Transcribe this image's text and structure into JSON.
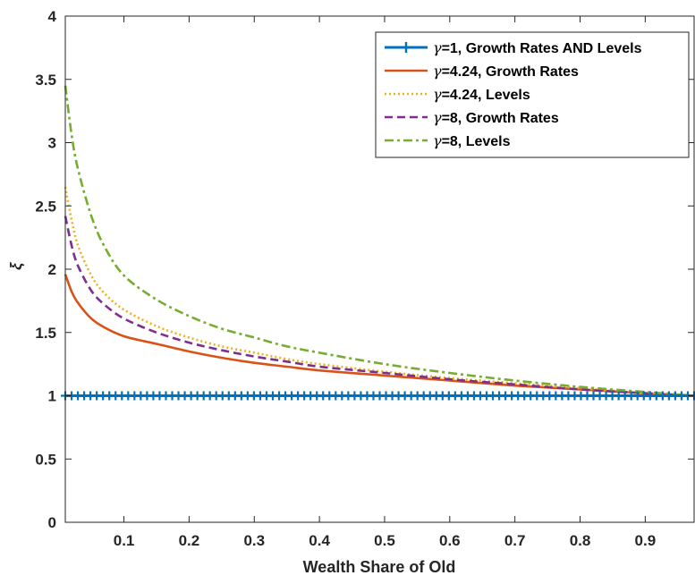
{
  "chart_data": {
    "type": "line",
    "xlabel": "Wealth Share of Old",
    "ylabel": "ξ",
    "xlim": [
      0.01,
      0.975
    ],
    "ylim": [
      0,
      4
    ],
    "xticks": [
      0.1,
      0.2,
      0.3,
      0.4,
      0.5,
      0.6,
      0.7,
      0.8,
      0.9
    ],
    "xtick_labels": [
      "0.1",
      "0.2",
      "0.3",
      "0.4",
      "0.5",
      "0.6",
      "0.7",
      "0.8",
      "0.9"
    ],
    "yticks": [
      0,
      0.5,
      1,
      1.5,
      2,
      2.5,
      3,
      3.5,
      4
    ],
    "ytick_labels": [
      "0",
      "0.5",
      "1",
      "1.5",
      "2",
      "2.5",
      "3",
      "3.5",
      "4"
    ],
    "legend_position": "top-right",
    "grid": false,
    "x": [
      0.01,
      0.02,
      0.03,
      0.05,
      0.07,
      0.1,
      0.15,
      0.2,
      0.25,
      0.3,
      0.35,
      0.4,
      0.5,
      0.6,
      0.7,
      0.8,
      0.9,
      0.975
    ],
    "series": [
      {
        "name": "γ=1, Growth Rates AND Levels",
        "greek": "γ",
        "text": "=1, Growth Rates AND Levels",
        "color": "#0072BD",
        "style": "solid-plus",
        "values": [
          1,
          1,
          1,
          1,
          1,
          1,
          1,
          1,
          1,
          1,
          1,
          1,
          1,
          1,
          1,
          1,
          1,
          1
        ]
      },
      {
        "name": "γ=4.24, Growth Rates",
        "greek": "γ",
        "text": "=4.24, Growth Rates",
        "color": "#D95319",
        "style": "solid",
        "values": [
          1.96,
          1.82,
          1.73,
          1.61,
          1.54,
          1.47,
          1.41,
          1.35,
          1.3,
          1.26,
          1.23,
          1.2,
          1.16,
          1.12,
          1.08,
          1.05,
          1.02,
          1.0
        ]
      },
      {
        "name": "γ=4.24, Levels",
        "greek": "γ",
        "text": "=4.24, Levels",
        "color": "#EDB120",
        "style": "dotted",
        "values": [
          2.65,
          2.38,
          2.18,
          1.95,
          1.81,
          1.68,
          1.55,
          1.46,
          1.39,
          1.34,
          1.29,
          1.25,
          1.19,
          1.14,
          1.1,
          1.06,
          1.02,
          1.0
        ]
      },
      {
        "name": "γ=8, Growth Rates",
        "greek": "γ",
        "text": "=8, Growth Rates",
        "color": "#7E2F8E",
        "style": "dashed",
        "values": [
          2.42,
          2.18,
          2.02,
          1.83,
          1.72,
          1.61,
          1.5,
          1.42,
          1.36,
          1.31,
          1.27,
          1.23,
          1.18,
          1.13,
          1.09,
          1.05,
          1.02,
          1.0
        ]
      },
      {
        "name": "γ=8, Levels",
        "greek": "γ",
        "text": "=8, Levels",
        "color": "#77AC30",
        "style": "dashdot",
        "values": [
          3.45,
          3.05,
          2.78,
          2.42,
          2.18,
          1.95,
          1.76,
          1.63,
          1.53,
          1.46,
          1.39,
          1.34,
          1.25,
          1.18,
          1.12,
          1.07,
          1.03,
          1.0
        ]
      }
    ]
  }
}
